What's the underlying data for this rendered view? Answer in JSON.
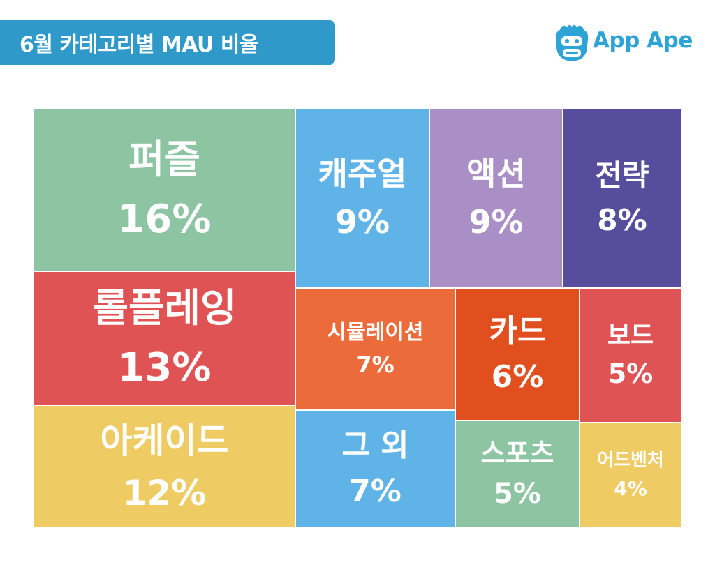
{
  "header": {
    "title": "6월 카테고리별 MAU 비율"
  },
  "logo": {
    "text": "App Ape",
    "icon": "ape-face-icon",
    "color": "#2ea3d6"
  },
  "chart_data": {
    "type": "treemap",
    "title": "6월 카테고리별 MAU 비율",
    "unit": "%",
    "items": [
      {
        "label": "퍼즐",
        "value": 16,
        "display": "16%",
        "color": "#8dc4a1"
      },
      {
        "label": "롤플레잉",
        "value": 13,
        "display": "13%",
        "color": "#df5354"
      },
      {
        "label": "아케이드",
        "value": 12,
        "display": "12%",
        "color": "#eecb63"
      },
      {
        "label": "캐주얼",
        "value": 9,
        "display": "9%",
        "color": "#5fb3e6"
      },
      {
        "label": "액션",
        "value": 9,
        "display": "9%",
        "color": "#aa8fc6"
      },
      {
        "label": "전략",
        "value": 8,
        "display": "8%",
        "color": "#574d9d"
      },
      {
        "label": "시뮬레이션",
        "value": 7,
        "display": "7%",
        "color": "#ec6b3a"
      },
      {
        "label": "카드",
        "value": 6,
        "display": "6%",
        "color": "#e24f1e"
      },
      {
        "label": "보드",
        "value": 5,
        "display": "5%",
        "color": "#df5354"
      },
      {
        "label": "그 외",
        "value": 7,
        "display": "7%",
        "color": "#5fb3e6"
      },
      {
        "label": "스포츠",
        "value": 5,
        "display": "5%",
        "color": "#8dc4a1"
      },
      {
        "label": "어드벤처",
        "value": 4,
        "display": "4%",
        "color": "#eecb63"
      }
    ]
  }
}
